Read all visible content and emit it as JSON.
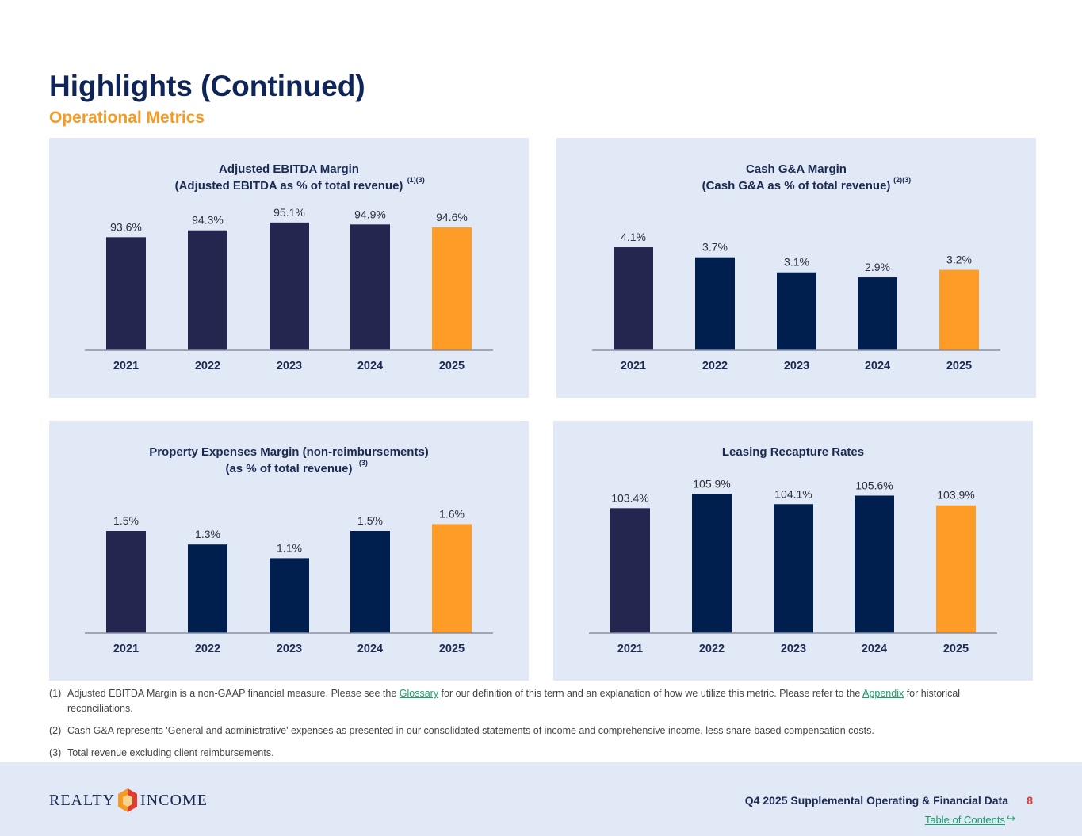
{
  "header": {
    "title": "Highlights (Continued)",
    "subtitle": "Operational Metrics"
  },
  "colors": {
    "panel_bg": "#e2e9f6",
    "bar_dark": "#242650",
    "bar_navy": "#001e4e",
    "bar_highlight": "#fd9d27",
    "axis": "#8a8fa0"
  },
  "chart_data": [
    {
      "type": "bar",
      "title_lines": [
        "Adjusted EBITDA Margin",
        "(Adjusted EBITDA as % of total revenue)"
      ],
      "title_superscript": "(1)(3)",
      "categories": [
        "2021",
        "2022",
        "2023",
        "2024",
        "2025"
      ],
      "values": [
        93.6,
        94.3,
        95.1,
        94.9,
        94.6
      ],
      "value_labels": [
        "93.6%",
        "94.3%",
        "95.1%",
        "94.9%",
        "94.6%"
      ],
      "highlight_index": 4
    },
    {
      "type": "bar",
      "title_lines": [
        "Cash G&A Margin",
        "(Cash G&A as % of total revenue)"
      ],
      "title_superscript": "(2)(3)",
      "categories": [
        "2021",
        "2022",
        "2023",
        "2024",
        "2025"
      ],
      "values": [
        4.1,
        3.7,
        3.1,
        2.9,
        3.2
      ],
      "value_labels": [
        "4.1%",
        "3.7%",
        "3.1%",
        "2.9%",
        "3.2%"
      ],
      "highlight_index": 4
    },
    {
      "type": "bar",
      "title_lines": [
        "Property Expenses Margin (non-reimbursements)",
        "(as % of total revenue)"
      ],
      "title_superscript": "(3)",
      "categories": [
        "2021",
        "2022",
        "2023",
        "2024",
        "2025"
      ],
      "values": [
        1.5,
        1.3,
        1.1,
        1.5,
        1.6
      ],
      "value_labels": [
        "1.5%",
        "1.3%",
        "1.1%",
        "1.5%",
        "1.6%"
      ],
      "highlight_index": 4
    },
    {
      "type": "bar",
      "title_lines": [
        "Leasing Recapture Rates"
      ],
      "title_superscript": "",
      "categories": [
        "2021",
        "2022",
        "2023",
        "2024",
        "2025"
      ],
      "values": [
        103.4,
        105.9,
        104.1,
        105.6,
        103.9
      ],
      "value_labels": [
        "103.4%",
        "105.9%",
        "104.1%",
        "105.6%",
        "103.9%"
      ],
      "highlight_index": 4
    }
  ],
  "footnotes": {
    "n1": {
      "num": "(1)",
      "text_a": "Adjusted EBITDA Margin is a non-GAAP financial measure. Please see the ",
      "link_a": "Glossary",
      "text_b": " for our definition of this term and an explanation of how we utilize this metric. Please refer to the ",
      "link_b": "Appendix",
      "text_c": " for historical reconciliations."
    },
    "n2": {
      "num": "(2)",
      "text": "Cash G&A represents 'General and administrative' expenses as presented in our consolidated statements of income and comprehensive income, less share-based compensation costs."
    },
    "n3": {
      "num": "(3)",
      "text": "Total revenue excluding client reimbursements."
    }
  },
  "footer": {
    "logo_left": "REALTY",
    "logo_right": "INCOME",
    "doc_title": "Q4 2025 Supplemental Operating & Financial Data",
    "page_number": "8",
    "toc_link": "Table of Contents",
    "toc_icon": "return-arrow-icon"
  }
}
